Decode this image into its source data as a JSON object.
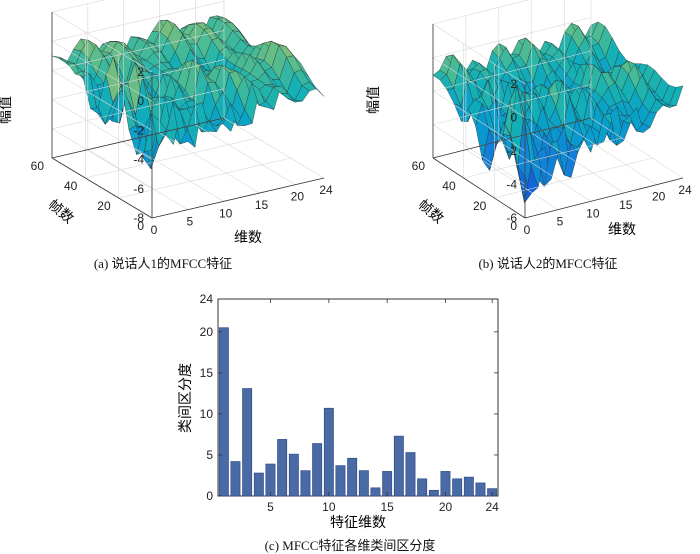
{
  "chart_data": [
    {
      "type": "surface",
      "caption": "(a) 说话人1的MFCC特征",
      "xlabel": "维数",
      "ylabel": "帧数",
      "zlabel": "幅值",
      "xticks": [
        "0",
        "5",
        "10",
        "15",
        "20",
        "24"
      ],
      "yticks": [
        "0",
        "20",
        "40",
        "60"
      ],
      "zticks": [
        "2",
        "0",
        "-2",
        "-4",
        "-6",
        "-8"
      ],
      "xlim": [
        0,
        24
      ],
      "ylim": [
        0,
        60
      ],
      "zlim": [
        -8,
        2
      ]
    },
    {
      "type": "surface",
      "caption": "(b) 说话人2的MFCC特征",
      "xlabel": "维数",
      "ylabel": "帧数",
      "zlabel": "幅值",
      "xticks": [
        "0",
        "5",
        "10",
        "15",
        "20",
        "24"
      ],
      "yticks": [
        "0",
        "20",
        "40",
        "60"
      ],
      "zticks": [
        "2",
        "0",
        "-2",
        "-4",
        "-6"
      ],
      "xlim": [
        0,
        24
      ],
      "ylim": [
        0,
        60
      ],
      "zlim": [
        -6,
        2
      ]
    },
    {
      "type": "bar",
      "caption": "(c) MFCC特征各维类间区分度",
      "xlabel": "特征维数",
      "ylabel": "类间区分度",
      "categories": [
        1,
        2,
        3,
        4,
        5,
        6,
        7,
        8,
        9,
        10,
        11,
        12,
        13,
        14,
        15,
        16,
        17,
        18,
        19,
        20,
        21,
        22,
        23,
        24
      ],
      "values": [
        20.5,
        4.2,
        13.1,
        2.8,
        3.9,
        6.9,
        5.1,
        3.1,
        6.4,
        10.7,
        3.7,
        4.6,
        3.1,
        1.0,
        3.0,
        7.3,
        5.3,
        2.1,
        0.7,
        3.0,
        2.1,
        2.3,
        1.6,
        0.9
      ],
      "xticks": [
        "5",
        "10",
        "15",
        "20",
        "24"
      ],
      "yticks": [
        "0",
        "5",
        "10",
        "15",
        "20",
        "24"
      ],
      "xlim": [
        0.5,
        24.5
      ],
      "ylim": [
        0,
        24
      ],
      "bar_color": "#4a6aa5",
      "edge_color": "#2b4680"
    }
  ]
}
